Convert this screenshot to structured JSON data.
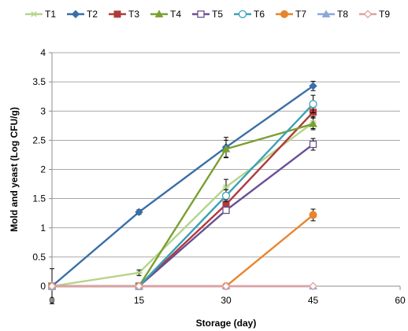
{
  "chart_data": {
    "type": "line",
    "title": "",
    "xlabel": "Storage (day)",
    "ylabel": "Mold and yeast (Log CFU/g)",
    "xlim": [
      0,
      60
    ],
    "ylim": [
      0,
      4
    ],
    "x_ticks": [
      0,
      15,
      30,
      45,
      60
    ],
    "y_ticks": [
      0,
      0.5,
      1,
      1.5,
      2,
      2.5,
      3,
      3.5,
      4
    ],
    "x_tick_labels": [
      "0",
      "15",
      "30",
      "45",
      "60"
    ],
    "y_tick_labels": [
      "0",
      "0.5",
      "1",
      "1.5",
      "2",
      "2.5",
      "3",
      "3.5",
      "4"
    ],
    "grid": {
      "horizontal": true,
      "vertical": false
    },
    "legend_placement": "top",
    "x": [
      0,
      15,
      30,
      45
    ],
    "series": [
      {
        "name": "T1",
        "color": "#b5d48a",
        "marker": "star",
        "values": [
          0,
          0.23,
          1.7,
          2.8
        ],
        "errors": [
          0,
          0.05,
          0.13,
          0.1
        ]
      },
      {
        "name": "T2",
        "color": "#3a6ea8",
        "marker": "diamond",
        "values": [
          0,
          1.27,
          2.38,
          3.43
        ],
        "errors": [
          0.3,
          0.04,
          0.17,
          0.08
        ]
      },
      {
        "name": "T3",
        "color": "#b03a3a",
        "marker": "square",
        "values": [
          0,
          0,
          1.4,
          2.98
        ],
        "errors": [
          0,
          0,
          0.08,
          0.08
        ]
      },
      {
        "name": "T4",
        "color": "#7aa032",
        "marker": "triangle",
        "values": [
          0,
          0,
          2.35,
          2.78
        ],
        "errors": [
          0,
          0,
          0.15,
          0.1
        ]
      },
      {
        "name": "T5",
        "color": "#6a4f93",
        "marker": "square-open",
        "values": [
          0,
          0,
          1.3,
          2.43
        ],
        "errors": [
          0,
          0,
          0.05,
          0.1
        ]
      },
      {
        "name": "T6",
        "color": "#3aa0b8",
        "marker": "circle-open",
        "values": [
          0,
          0,
          1.55,
          3.12
        ],
        "errors": [
          0,
          0,
          0.1,
          0.15
        ]
      },
      {
        "name": "T7",
        "color": "#e8842c",
        "marker": "circle",
        "values": [
          0,
          0,
          0,
          1.22
        ],
        "errors": [
          0,
          0,
          0,
          0.1
        ]
      },
      {
        "name": "T8",
        "color": "#8aa8d8",
        "marker": "triangle",
        "values": [
          0,
          0,
          0,
          0
        ],
        "errors": [
          0,
          0,
          0,
          0
        ]
      },
      {
        "name": "T9",
        "color": "#e0a0a0",
        "marker": "diamond-open",
        "values": [
          0,
          0,
          0,
          0
        ],
        "errors": [
          0,
          0,
          0,
          0
        ]
      }
    ]
  }
}
